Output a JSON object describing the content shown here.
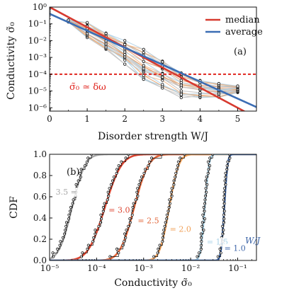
{
  "chart_data": [
    {
      "panel": "(a)",
      "type": "line",
      "xlabel": "Disorder strength W/J",
      "ylabel": "Conductivity σ̃₀",
      "xlim": [
        0,
        5.5
      ],
      "ylim_log10": [
        -6.2,
        0
      ],
      "yscale": "log",
      "x_ticks": [
        "0",
        "1",
        "2",
        "3",
        "4",
        "5"
      ],
      "y_ticks": [
        "10⁰",
        "10⁻¹",
        "10⁻²",
        "10⁻³",
        "10⁻⁴",
        "10⁻⁵",
        "10⁻⁶"
      ],
      "legend_position": "top-right",
      "series": [
        {
          "name": "median",
          "color": "#d73a2f",
          "x": [
            0,
            5.5
          ],
          "y": [
            1.0,
            2.5e-07
          ]
        },
        {
          "name": "average",
          "color": "#3b6db4",
          "x": [
            0,
            5.5
          ],
          "y": [
            0.4,
            1.1e-06
          ]
        }
      ],
      "threshold": {
        "label": "σ̃₀ ≃ δω",
        "y": 0.0001,
        "color": "#e0261f"
      },
      "samples": {
        "x": [
          0.5,
          1.0,
          1.5,
          2.0,
          2.5,
          3.0,
          3.5,
          4.0,
          4.5,
          5.0
        ],
        "y_range": [
          [
            0.13,
            0.17
          ],
          [
            0.015,
            0.12
          ],
          [
            0.003,
            0.03
          ],
          [
            0.0004,
            0.01
          ],
          [
            5e-05,
            0.003
          ],
          [
            1.5e-05,
            0.0006
          ],
          [
            4e-06,
            0.00012
          ],
          [
            4e-06,
            5e-05
          ],
          [
            4e-06,
            3e-05
          ],
          [
            8e-06,
            2e-05
          ]
        ]
      },
      "panel_label": "(a)"
    },
    {
      "panel": "(b)",
      "type": "line",
      "xlabel": "Conductivity σ̃₀",
      "ylabel": "CDF",
      "xscale": "log",
      "xlim_log10": [
        -5,
        -0.6
      ],
      "ylim": [
        0,
        1
      ],
      "x_ticks": [
        "10⁻⁵",
        "10⁻⁴",
        "10⁻³",
        "10⁻²",
        "10⁻¹"
      ],
      "y_ticks": [
        "0.0",
        "0.2",
        "0.4",
        "0.6",
        "0.8",
        "1.0"
      ],
      "curves": [
        {
          "label": "3.5 =",
          "W": 3.5,
          "color": "#a8a8a8",
          "median": 3e-05,
          "width_decades": 0.22
        },
        {
          "label": "= 3.0",
          "W": 3.0,
          "color": "#dc4631",
          "median": 0.00015,
          "width_decades": 0.28
        },
        {
          "label": "= 2.5",
          "W": 2.5,
          "color": "#e2663a",
          "median": 0.00063,
          "width_decades": 0.24
        },
        {
          "label": "= 2.0",
          "W": 2.0,
          "color": "#f0a058",
          "median": 0.0035,
          "width_decades": 0.16
        },
        {
          "label": "= 1.5",
          "W": 1.5,
          "color": "#a9d3e8",
          "median": 0.02,
          "width_decades": 0.07
        },
        {
          "label": "= 1.0",
          "W": 1.0,
          "color": "#3e66a8",
          "median": 0.052,
          "width_decades": 0.055
        }
      ],
      "axis_annotation": "W/J",
      "panel_label": "(b)"
    }
  ],
  "legend": {
    "median": "median",
    "average": "average"
  }
}
